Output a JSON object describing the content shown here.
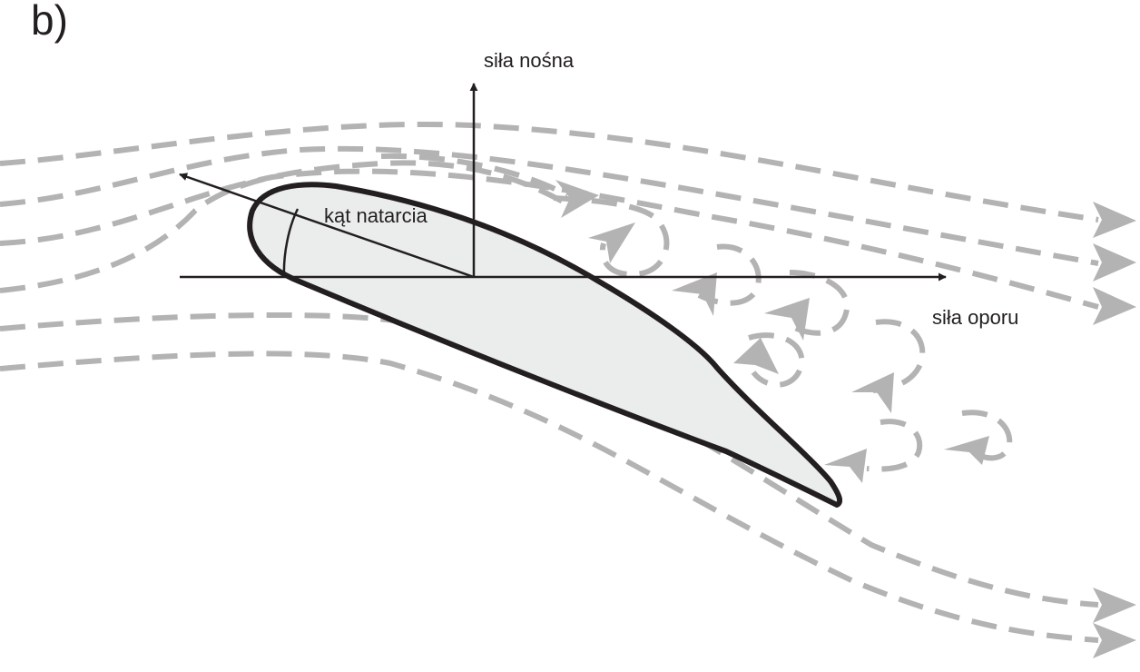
{
  "panel_label": "b)",
  "labels": {
    "lift": "siła nośna",
    "drag": "siła oporu",
    "angle_of_attack": "kąt natarcia"
  },
  "colors": {
    "airfoil_fill": "#ebeded",
    "outline": "#231f20",
    "streamline": "#b3b3b3",
    "background": "#ffffff"
  }
}
